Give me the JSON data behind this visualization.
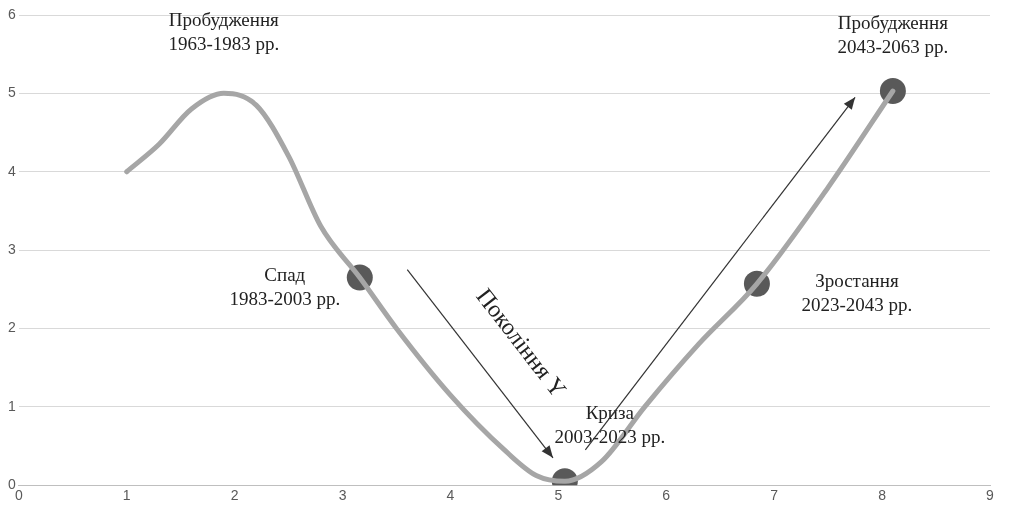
{
  "chart_data": {
    "type": "line",
    "xlim": [
      0,
      9
    ],
    "xticks": [
      0,
      1,
      2,
      3,
      4,
      5,
      6,
      7,
      8,
      9
    ],
    "ylim": [
      0,
      6
    ],
    "yticks": [
      0,
      1,
      2,
      3,
      4,
      5,
      6
    ],
    "grid": "y",
    "legend": false,
    "series": [
      {
        "color": "#a6a6a6",
        "marker": "none",
        "x": [
          1,
          1.3,
          1.6,
          1.9,
          2.2,
          2.5,
          2.8,
          3.16,
          3.5,
          4.0,
          4.5,
          4.8,
          5.06,
          5.4,
          5.8,
          6.3,
          6.84,
          7.5,
          8.1
        ],
        "values": [
          4,
          4.35,
          4.8,
          5.0,
          4.85,
          4.2,
          3.3,
          2.65,
          2.0,
          1.15,
          0.45,
          0.12,
          0.05,
          0.3,
          1.0,
          1.8,
          2.57,
          3.8,
          5.03
        ]
      },
      {
        "type": "scatter",
        "color": "#595959",
        "marker": "circle",
        "x": [
          3.16,
          5.06,
          6.84,
          8.1
        ],
        "values": [
          2.65,
          0.05,
          2.57,
          5.03
        ]
      }
    ],
    "annotations": [
      {
        "text": "Пробудження\n1963-1983 рр.",
        "x": 1.9,
        "y": 5
      },
      {
        "text": "Спад\n1983-2003 рр.",
        "x": 3.16,
        "y": 2.65
      },
      {
        "text": "Криза\n2003-2023 рр.",
        "x": 5.06,
        "y": 0.05
      },
      {
        "text": "Зростання\n2023-2043 рр.",
        "x": 6.84,
        "y": 2.57
      },
      {
        "text": "Пробудження\n2043-2063 рр.",
        "x": 8.1,
        "y": 5.03
      },
      "Покоління Y"
    ]
  }
}
